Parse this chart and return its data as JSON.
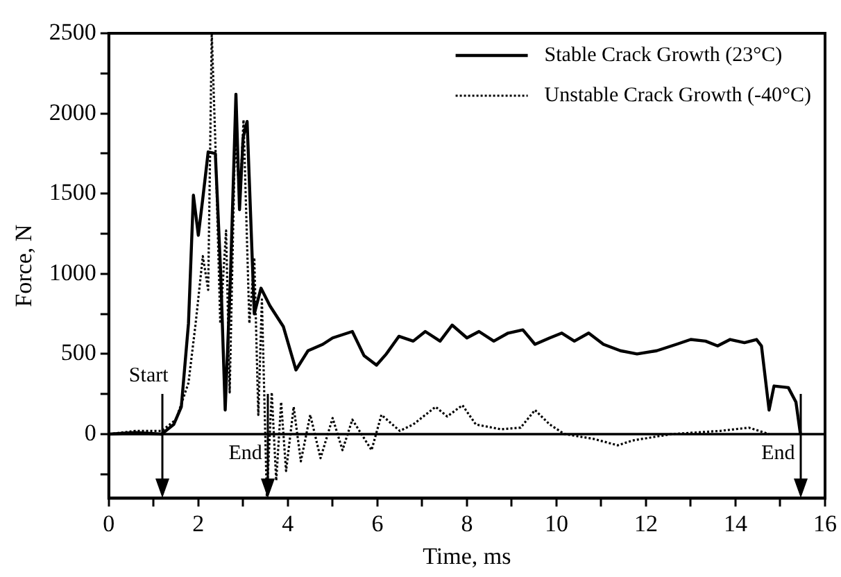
{
  "chart_data": {
    "type": "line",
    "xlabel": "Time, ms",
    "ylabel": "Force, N",
    "xlim": [
      0,
      16
    ],
    "xticks": [
      0,
      {
        "value": 1,
        "label": null
      },
      2,
      {
        "value": 3,
        "label": null
      },
      4,
      {
        "value": 5,
        "label": null
      },
      6,
      {
        "value": 7,
        "label": null
      },
      8,
      {
        "value": 9,
        "label": null
      },
      10,
      {
        "value": 11,
        "label": null
      },
      12,
      {
        "value": 13,
        "label": null
      },
      14,
      {
        "value": 15,
        "label": null
      },
      16
    ],
    "ylim": [
      -400,
      2500
    ],
    "yticks": [
      {
        "value": -250,
        "label": null
      },
      0,
      {
        "value": 250,
        "label": null
      },
      500,
      {
        "value": 750,
        "label": null
      },
      1000,
      {
        "value": 1250,
        "label": null
      },
      1500,
      {
        "value": 1750,
        "label": null
      },
      2000,
      {
        "value": 2250,
        "label": null
      },
      2500
    ],
    "grid": false,
    "legend": "top right",
    "marker": "none",
    "series": [
      {
        "name": "Stable Crack Growth (23°C)",
        "color": "#000000",
        "line_style": "solid",
        "x": [
          0,
          0.6,
          1.18,
          1.45,
          1.62,
          1.78,
          1.89,
          2.0,
          2.1,
          2.22,
          2.38,
          2.5,
          2.6,
          2.72,
          2.84,
          2.92,
          3.0,
          3.09,
          3.25,
          3.4,
          3.6,
          3.9,
          4.18,
          4.45,
          4.78,
          5.0,
          5.44,
          5.7,
          5.98,
          6.2,
          6.48,
          6.8,
          7.07,
          7.4,
          7.67,
          8.0,
          8.27,
          8.6,
          8.92,
          9.25,
          9.52,
          9.85,
          10.12,
          10.4,
          10.72,
          11.05,
          11.43,
          11.8,
          12.24,
          12.68,
          13.0,
          13.33,
          13.6,
          13.88,
          14.2,
          14.47,
          14.58,
          14.75,
          14.86,
          15.18,
          15.35,
          15.45
        ],
        "values": [
          0,
          10,
          0,
          60,
          170,
          690,
          1490,
          1240,
          1470,
          1760,
          1750,
          1000,
          150,
          1000,
          2120,
          1400,
          1850,
          1950,
          750,
          910,
          800,
          670,
          400,
          520,
          560,
          600,
          640,
          490,
          430,
          500,
          610,
          580,
          640,
          580,
          680,
          600,
          640,
          580,
          630,
          650,
          560,
          600,
          630,
          580,
          630,
          560,
          520,
          500,
          520,
          560,
          590,
          580,
          550,
          590,
          570,
          590,
          550,
          150,
          300,
          290,
          200,
          0
        ]
      },
      {
        "name": "Unstable Crack Growth (-40°C)",
        "color": "#000000",
        "line_style": "dotted",
        "x": [
          0,
          0.6,
          1.18,
          1.5,
          1.78,
          1.94,
          2.1,
          2.22,
          2.3,
          2.38,
          2.49,
          2.62,
          2.7,
          2.82,
          2.93,
          3.01,
          3.14,
          3.25,
          3.34,
          3.42,
          3.53,
          3.64,
          3.74,
          3.85,
          3.96,
          4.13,
          4.29,
          4.5,
          4.73,
          5.0,
          5.22,
          5.44,
          5.87,
          6.09,
          6.5,
          6.8,
          7.3,
          7.56,
          7.9,
          8.2,
          8.76,
          9.2,
          9.52,
          9.85,
          10.18,
          10.83,
          11.37,
          11.7,
          12.57,
          13.66,
          14.3,
          14.75
        ],
        "values": [
          0,
          20,
          20,
          90,
          320,
          690,
          1110,
          900,
          2500,
          1820,
          690,
          1270,
          260,
          1850,
          1470,
          1960,
          690,
          1100,
          120,
          840,
          -390,
          260,
          -290,
          200,
          -230,
          170,
          -170,
          120,
          -150,
          100,
          -100,
          90,
          -100,
          120,
          20,
          60,
          170,
          110,
          180,
          60,
          30,
          40,
          150,
          60,
          0,
          -30,
          -70,
          -40,
          0,
          20,
          40,
          0
        ]
      }
    ],
    "ref_lines": [
      {
        "axis": "y",
        "value": 0,
        "color": "#000000",
        "line_style": "solid"
      },
      {
        "axis": "x",
        "value": 1.2,
        "label": "Start",
        "color": "#000000"
      },
      {
        "axis": "x",
        "value": 3.55,
        "label": "End",
        "color": "#000000"
      },
      {
        "axis": "x",
        "value": 15.45,
        "label": "End",
        "color": "#000000"
      }
    ]
  }
}
